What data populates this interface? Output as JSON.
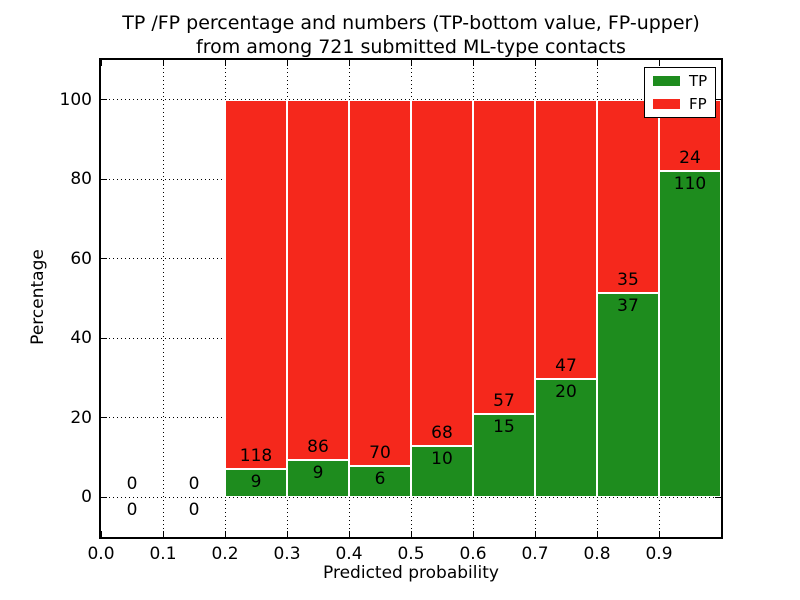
{
  "chart_data": {
    "type": "bar",
    "stacked": true,
    "percent_stacked": true,
    "title_line1": "TP /FP percentage and numbers (TP-bottom value, FP-upper)",
    "title_line2": "from among 721 submitted ML-type contacts",
    "xlabel": "Predicted probability",
    "ylabel": "Percentage",
    "xlim": [
      0.0,
      1.0
    ],
    "ylim": [
      -10,
      110
    ],
    "grid": "dotted",
    "legend_position": "upper right",
    "bin_width": 0.1,
    "categories": [
      "0.0",
      "0.1",
      "0.2",
      "0.3",
      "0.4",
      "0.5",
      "0.6",
      "0.7",
      "0.8",
      "0.9"
    ],
    "y_ticks": [
      0,
      20,
      40,
      60,
      80,
      100
    ],
    "series": [
      {
        "name": "TP",
        "values": [
          0,
          0,
          9,
          9,
          6,
          10,
          15,
          20,
          37,
          110
        ]
      },
      {
        "name": "FP",
        "values": [
          0,
          0,
          118,
          86,
          70,
          68,
          57,
          47,
          35,
          24
        ]
      }
    ],
    "tp_percentages": [
      0,
      0,
      7.09,
      9.47,
      7.89,
      12.82,
      20.83,
      29.85,
      51.39,
      82.09
    ],
    "legend": [
      {
        "label": "TP",
        "color": "#1e8c1e"
      },
      {
        "label": "FP",
        "color": "#f5281c"
      }
    ],
    "colors": {
      "tp": "#1e8c1e",
      "fp": "#f5281c",
      "grid": "#000000",
      "text": "#000000"
    }
  }
}
